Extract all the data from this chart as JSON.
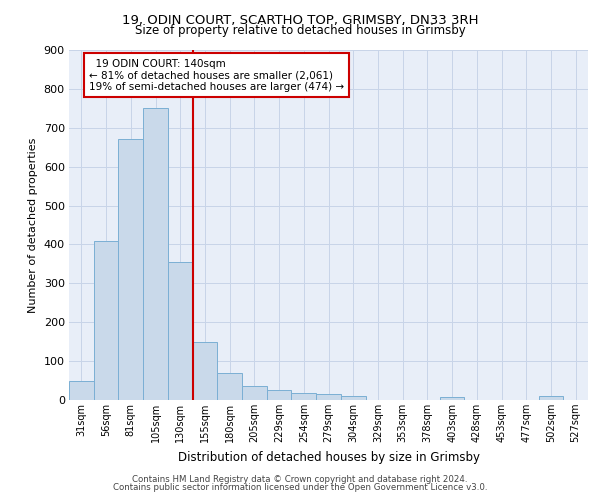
{
  "title_line1": "19, ODIN COURT, SCARTHO TOP, GRIMSBY, DN33 3RH",
  "title_line2": "Size of property relative to detached houses in Grimsby",
  "xlabel": "Distribution of detached houses by size in Grimsby",
  "ylabel": "Number of detached properties",
  "footnote1": "Contains HM Land Registry data © Crown copyright and database right 2024.",
  "footnote2": "Contains public sector information licensed under the Open Government Licence v3.0.",
  "bar_color": "#c9d9ea",
  "bar_edge_color": "#7bafd4",
  "grid_color": "#c8d4e8",
  "annotation_box_color": "#cc0000",
  "vline_color": "#cc0000",
  "categories": [
    "31sqm",
    "56sqm",
    "81sqm",
    "105sqm",
    "130sqm",
    "155sqm",
    "180sqm",
    "205sqm",
    "229sqm",
    "254sqm",
    "279sqm",
    "304sqm",
    "329sqm",
    "353sqm",
    "378sqm",
    "403sqm",
    "428sqm",
    "453sqm",
    "477sqm",
    "502sqm",
    "527sqm"
  ],
  "values": [
    48,
    410,
    670,
    750,
    355,
    148,
    70,
    35,
    27,
    17,
    15,
    10,
    0,
    0,
    0,
    8,
    0,
    0,
    0,
    10,
    0
  ],
  "property_label": "19 ODIN COURT: 140sqm",
  "pct_smaller": "81% of detached houses are smaller (2,061)",
  "pct_larger": "19% of semi-detached houses are larger (474)",
  "vline_x": 4.5,
  "ylim": [
    0,
    900
  ],
  "yticks": [
    0,
    100,
    200,
    300,
    400,
    500,
    600,
    700,
    800,
    900
  ],
  "background_color": "#e8eef8",
  "fig_background": "#ffffff"
}
